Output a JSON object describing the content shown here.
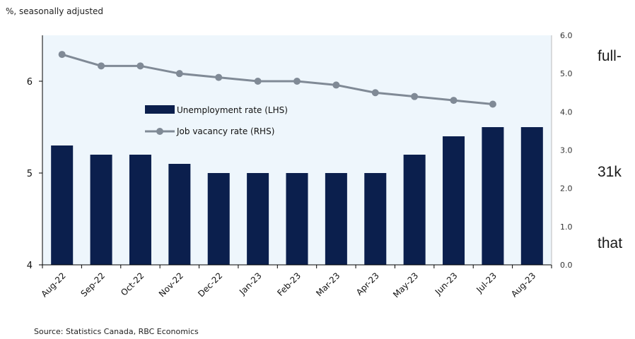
{
  "chart_data": {
    "type": "bar",
    "title": "",
    "subtitle": "%, seasonally adjusted",
    "source": "Source: Statistics Canada, RBC Economics",
    "categories": [
      "Aug-22",
      "Sep-22",
      "Oct-22",
      "Nov-22",
      "Dec-22",
      "Jan-23",
      "Feb-23",
      "Mar-23",
      "Apr-23",
      "May-23",
      "Jun-23",
      "Jul-23",
      "Aug-23"
    ],
    "series": [
      {
        "name": "Unemployment rate (LHS)",
        "type": "bar",
        "axis": "left",
        "color": "#0b1f4d",
        "values": [
          5.3,
          5.2,
          5.2,
          5.1,
          5.0,
          5.0,
          5.0,
          5.0,
          5.0,
          5.2,
          5.4,
          5.5,
          5.5
        ]
      },
      {
        "name": "Job vacancy rate (RHS)",
        "type": "line",
        "axis": "right",
        "color": "#808a96",
        "values": [
          5.5,
          5.2,
          5.2,
          5.0,
          4.9,
          4.8,
          4.8,
          4.7,
          4.5,
          4.4,
          4.3,
          4.2,
          null
        ]
      }
    ],
    "y_left": {
      "min": 4,
      "max": 6.5,
      "ticks": [
        4,
        5,
        6
      ]
    },
    "y_right": {
      "min": 0,
      "max": 6,
      "ticks": [
        "0.0",
        "1.0",
        "2.0",
        "3.0",
        "4.0",
        "5.0",
        "6.0"
      ]
    },
    "legend_position": "top-left-inside",
    "plot_background": "#eef6fc",
    "grid": false
  },
  "side_text": [
    "full-",
    "31k",
    "that"
  ]
}
